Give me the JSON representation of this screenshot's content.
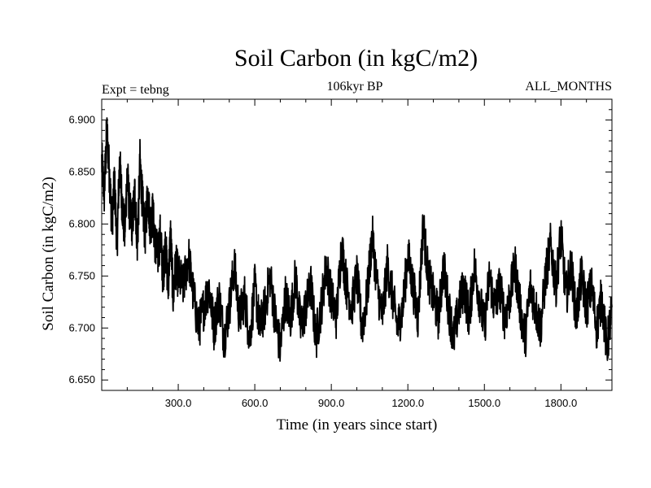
{
  "chart_data": {
    "type": "line",
    "title": "Soil Carbon (in kgC/m2)",
    "subtitle_left": "Expt = tebng",
    "subtitle_center": "106kyr BP",
    "subtitle_right": "ALL_MONTHS",
    "xlabel": "Time (in years since start)",
    "ylabel": "Soil Carbon (in kgC/m2)",
    "xlim": [
      0,
      2000
    ],
    "ylim": [
      6.64,
      6.92
    ],
    "xticks": [
      300,
      600,
      900,
      1200,
      1500,
      1800
    ],
    "xtick_labels": [
      "300.0",
      "600.0",
      "900.0",
      "1200.0",
      "1500.0",
      "1800.0"
    ],
    "yticks": [
      6.65,
      6.7,
      6.75,
      6.8,
      6.85,
      6.9
    ],
    "ytick_labels": [
      "6.650",
      "6.700",
      "6.750",
      "6.800",
      "6.850",
      "6.900"
    ],
    "grid": false,
    "series": [
      {
        "name": "Soil Carbon",
        "color": "#000000",
        "x": [
          0,
          10,
          20,
          30,
          40,
          50,
          60,
          70,
          80,
          90,
          100,
          110,
          120,
          130,
          140,
          150,
          160,
          170,
          180,
          190,
          200,
          210,
          220,
          230,
          240,
          250,
          260,
          270,
          280,
          290,
          300,
          320,
          340,
          360,
          380,
          400,
          420,
          440,
          460,
          480,
          500,
          520,
          540,
          560,
          580,
          600,
          620,
          640,
          660,
          680,
          700,
          720,
          740,
          760,
          780,
          800,
          820,
          840,
          860,
          880,
          900,
          920,
          940,
          960,
          980,
          1000,
          1020,
          1040,
          1060,
          1080,
          1100,
          1120,
          1140,
          1160,
          1180,
          1200,
          1220,
          1240,
          1260,
          1280,
          1300,
          1320,
          1340,
          1360,
          1380,
          1400,
          1420,
          1440,
          1460,
          1480,
          1500,
          1520,
          1540,
          1560,
          1580,
          1600,
          1620,
          1640,
          1660,
          1680,
          1700,
          1720,
          1740,
          1760,
          1780,
          1800,
          1820,
          1840,
          1860,
          1880,
          1900,
          1920,
          1940,
          1960,
          1980,
          2000
        ],
        "values": [
          6.86,
          6.83,
          6.89,
          6.85,
          6.8,
          6.84,
          6.78,
          6.86,
          6.82,
          6.79,
          6.85,
          6.81,
          6.8,
          6.83,
          6.78,
          6.86,
          6.82,
          6.79,
          6.83,
          6.8,
          6.81,
          6.78,
          6.77,
          6.79,
          6.75,
          6.78,
          6.74,
          6.79,
          6.73,
          6.76,
          6.75,
          6.74,
          6.77,
          6.73,
          6.7,
          6.72,
          6.74,
          6.7,
          6.73,
          6.69,
          6.72,
          6.76,
          6.71,
          6.73,
          6.69,
          6.74,
          6.7,
          6.72,
          6.75,
          6.71,
          6.68,
          6.73,
          6.71,
          6.75,
          6.7,
          6.72,
          6.74,
          6.69,
          6.72,
          6.76,
          6.73,
          6.71,
          6.78,
          6.74,
          6.72,
          6.75,
          6.7,
          6.73,
          6.79,
          6.74,
          6.71,
          6.76,
          6.73,
          6.7,
          6.72,
          6.77,
          6.74,
          6.71,
          6.8,
          6.75,
          6.73,
          6.71,
          6.76,
          6.72,
          6.69,
          6.72,
          6.74,
          6.71,
          6.76,
          6.73,
          6.7,
          6.75,
          6.72,
          6.74,
          6.71,
          6.73,
          6.76,
          6.72,
          6.69,
          6.74,
          6.72,
          6.7,
          6.75,
          6.78,
          6.74,
          6.79,
          6.73,
          6.76,
          6.71,
          6.75,
          6.72,
          6.74,
          6.7,
          6.73,
          6.68,
          6.72
        ]
      }
    ]
  }
}
